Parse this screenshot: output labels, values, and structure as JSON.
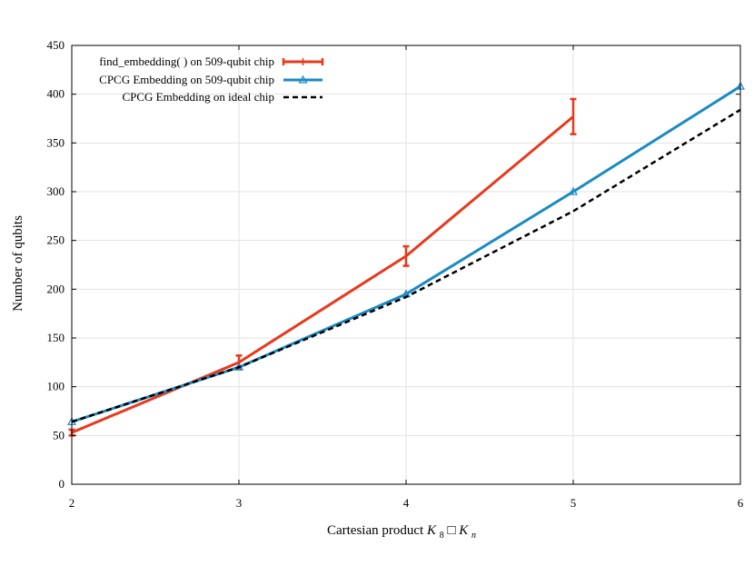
{
  "chart_data": {
    "type": "line",
    "title": "",
    "xlabel_text": "Cartesian product ",
    "xlabel_math": {
      "k": "K",
      "k_sub": "8",
      "box": "□",
      "n": "K",
      "n_sub": "n"
    },
    "ylabel": "Number of qubits",
    "xlim": [
      2,
      6
    ],
    "ylim": [
      0,
      450
    ],
    "xticks": [
      2,
      3,
      4,
      5,
      6
    ],
    "yticks": [
      0,
      50,
      100,
      150,
      200,
      250,
      300,
      350,
      400,
      450
    ],
    "grid": true,
    "legend_position": "top-left",
    "series": [
      {
        "name": "find_embedding( ) on 509-qubit chip",
        "color": "#e8391d",
        "style": "solid",
        "marker": "errorbar",
        "x": [
          2,
          3,
          4,
          5
        ],
        "y": [
          53,
          125,
          234,
          377
        ],
        "err": [
          3,
          7,
          10,
          18
        ]
      },
      {
        "name": "CPCG Embedding on 509-qubit chip",
        "color": "#1a8ac4",
        "style": "solid",
        "marker": "triangle",
        "x": [
          2,
          3,
          4,
          5,
          6
        ],
        "y": [
          64,
          120,
          195,
          300,
          408
        ]
      },
      {
        "name": "CPCG Embedding on ideal chip",
        "color": "#000000",
        "style": "dashed",
        "marker": "none",
        "x": [
          2,
          3,
          4,
          5,
          6
        ],
        "y": [
          64,
          120,
          192,
          280,
          384
        ]
      }
    ]
  }
}
